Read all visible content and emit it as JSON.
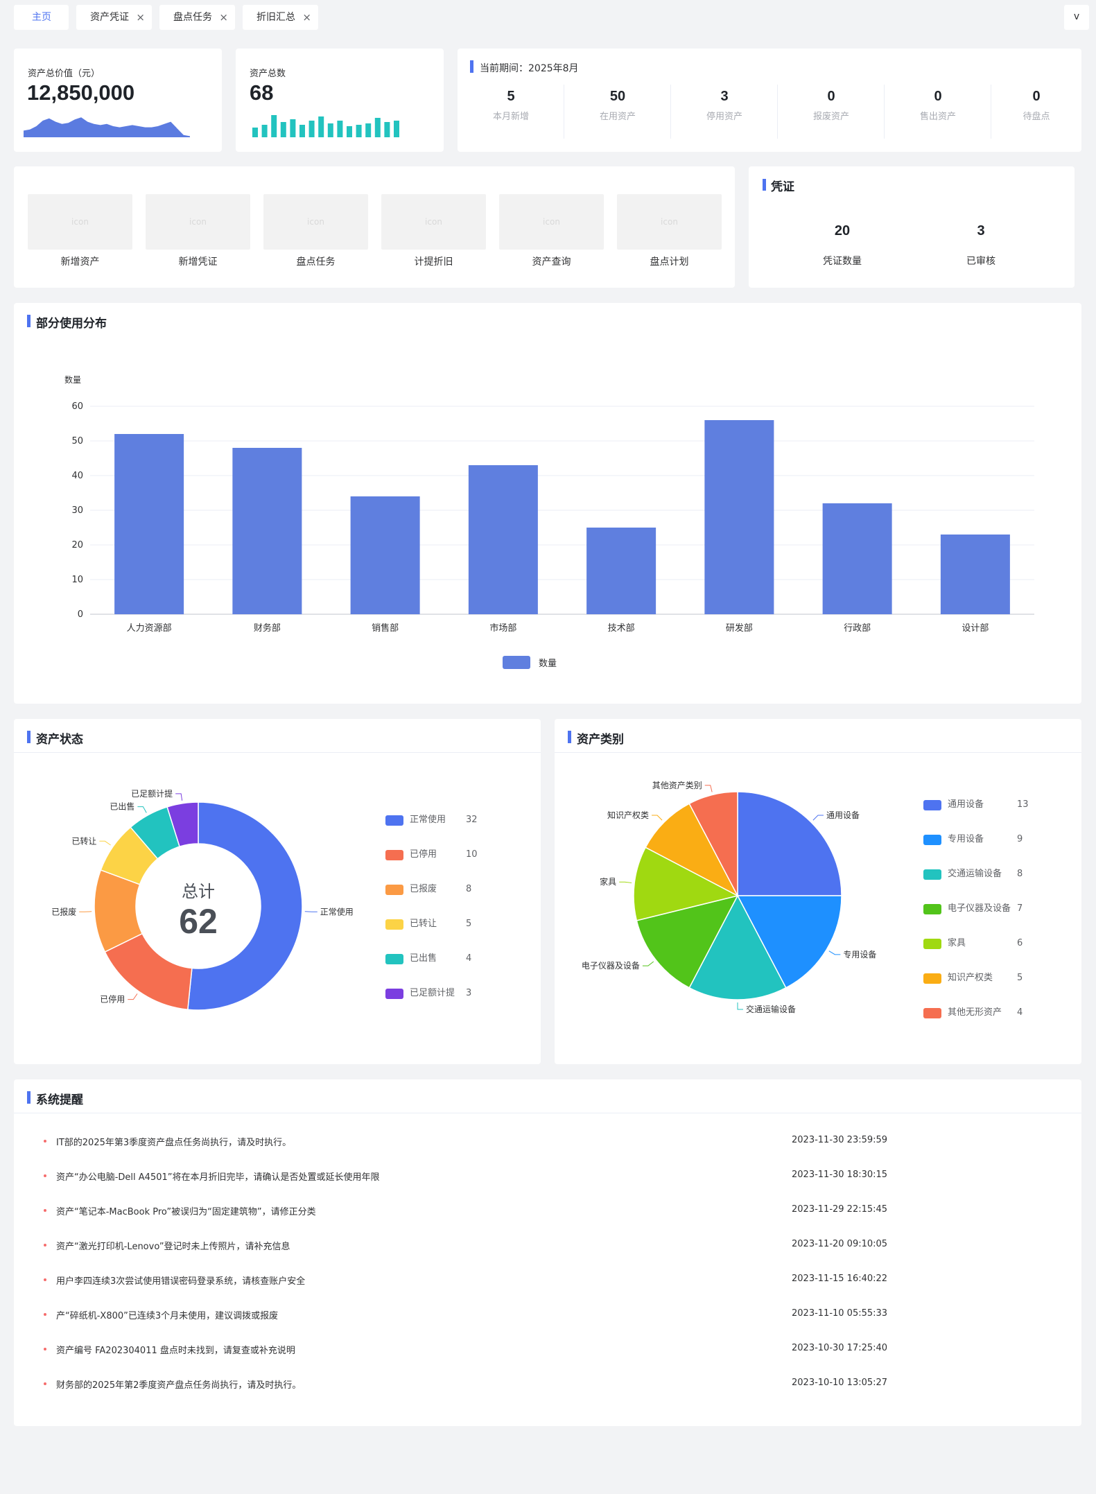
{
  "tabs": [
    {
      "label": "主页",
      "active": true,
      "closable": false
    },
    {
      "label": "资产凭证",
      "active": false,
      "closable": true
    },
    {
      "label": "盘点任务",
      "active": false,
      "closable": true
    },
    {
      "label": "折旧汇总",
      "active": false,
      "closable": true
    }
  ],
  "tab_close_glyph": "×",
  "tab_dropdown_glyph": "v",
  "summary": {
    "total_value_label": "资产总价值（元）",
    "total_value": "12,850,000",
    "total_count_label": "资产总数",
    "total_count": "68",
    "period_label": "当前期间：2025年8月",
    "stats": [
      {
        "value": "5",
        "label": "本月新增"
      },
      {
        "value": "50",
        "label": "在用资产"
      },
      {
        "value": "3",
        "label": "停用资产"
      },
      {
        "value": "0",
        "label": "报废资产"
      },
      {
        "value": "0",
        "label": "售出资产"
      },
      {
        "value": "0",
        "label": "待盘点"
      }
    ]
  },
  "quick_actions": [
    {
      "icon": "icon",
      "label": "新增资产"
    },
    {
      "icon": "icon",
      "label": "新增凭证"
    },
    {
      "icon": "icon",
      "label": "盘点任务"
    },
    {
      "icon": "icon",
      "label": "计提折旧"
    },
    {
      "icon": "icon",
      "label": "资产查询"
    },
    {
      "icon": "icon",
      "label": "盘点计划"
    }
  ],
  "voucher": {
    "title": "凭证",
    "items": [
      {
        "value": "20",
        "label": "凭证数量"
      },
      {
        "value": "3",
        "label": "已审核"
      }
    ]
  },
  "colors": {
    "accent": "#4e73f0",
    "bar": "#5f7fdf",
    "mini_area": "#5b7be0",
    "mini_bar": "#22c3bf",
    "reminder_dot": "#f56c6c"
  },
  "chart_data": [
    {
      "type": "bar",
      "title": "部分使用分布",
      "ylabel": "数量",
      "categories": [
        "人力资源部",
        "财务部",
        "销售部",
        "市场部",
        "技术部",
        "研发部",
        "行政部",
        "设计部"
      ],
      "series": [
        {
          "name": "数量",
          "values": [
            52,
            48,
            34,
            43,
            25,
            56,
            32,
            23
          ]
        }
      ],
      "ylim": [
        0,
        60
      ],
      "yticks": [
        "0",
        "10",
        "20",
        "30",
        "40",
        "50",
        "60"
      ],
      "grid": true,
      "legend": "bottom"
    },
    {
      "type": "pie",
      "title": "资产状态",
      "center_label": "总计",
      "center_value": "62",
      "slices": [
        {
          "name": "正常使用",
          "value": 32,
          "color": "#4e73f0"
        },
        {
          "name": "已停用",
          "value": 10,
          "color": "#f56e50"
        },
        {
          "name": "已报废",
          "value": 8,
          "color": "#fb9a44"
        },
        {
          "name": "已转让",
          "value": 5,
          "color": "#fcd346"
        },
        {
          "name": "已出售",
          "value": 4,
          "color": "#22c3bf"
        },
        {
          "name": "已足额计提",
          "value": 3,
          "color": "#7b3ee0"
        }
      ],
      "legend": "right"
    },
    {
      "type": "pie",
      "title": "资产类别",
      "slices": [
        {
          "name": "通用设备",
          "value": 13,
          "color": "#4e73f0"
        },
        {
          "name": "专用设备",
          "value": 9,
          "color": "#1e90ff"
        },
        {
          "name": "交通运输设备",
          "value": 8,
          "color": "#22c3bf"
        },
        {
          "name": "电子仪器及设备",
          "value": 7,
          "color": "#52c41a"
        },
        {
          "name": "家具",
          "value": 6,
          "color": "#a0d911"
        },
        {
          "name": "知识产权类",
          "value": 5,
          "color": "#faad14"
        },
        {
          "name": "其他无形资产",
          "value": 4,
          "color": "#f56e50"
        }
      ],
      "outer_labels": [
        "通用设备",
        "专用设备",
        "交通运输设备",
        "电子仪器及设备",
        "家具",
        "知识产权类",
        "其他资产类别"
      ],
      "legend": "right"
    }
  ],
  "mini_trend": {
    "area": [
      6,
      7,
      10,
      15,
      17,
      14,
      12,
      13,
      16,
      18,
      14,
      12,
      11,
      12,
      10,
      9,
      10,
      11,
      10,
      9,
      9,
      10,
      12,
      14,
      8,
      2,
      1
    ],
    "bars": [
      7,
      9,
      16,
      11,
      13,
      9,
      12,
      15,
      10,
      12,
      8,
      9,
      10,
      14,
      11,
      12
    ]
  },
  "reminders": {
    "title": "系统提醒",
    "items": [
      {
        "text": "IT部的2025年第3季度资产盘点任务尚执行，请及时执行。",
        "time": "2023-11-30 23:59:59"
      },
      {
        "text": "资产“办公电脑-Dell A4501”将在本月折旧完毕，请确认是否处置或延长使用年限",
        "time": "2023-11-30 18:30:15"
      },
      {
        "text": "资产“笔记本-MacBook Pro”被误归为“固定建筑物”，请修正分类",
        "time": "2023-11-29 22:15:45"
      },
      {
        "text": "资产“激光打印机-Lenovo”登记时未上传照片，请补充信息",
        "time": "2023-11-20 09:10:05"
      },
      {
        "text": "用户李四连续3次尝试使用错误密码登录系统，请核查账户安全",
        "time": "2023-11-15 16:40:22"
      },
      {
        "text": "产“碎纸机-X800”已连续3个月未使用，建议调拨或报废",
        "time": "2023-11-10 05:55:33"
      },
      {
        "text": "资产编号 FA202304011 盘点时未找到，请复查或补充说明",
        "time": "2023-10-30 17:25:40"
      },
      {
        "text": "财务部的2025年第2季度资产盘点任务尚执行，请及时执行。",
        "time": "2023-10-10 13:05:27"
      }
    ]
  }
}
